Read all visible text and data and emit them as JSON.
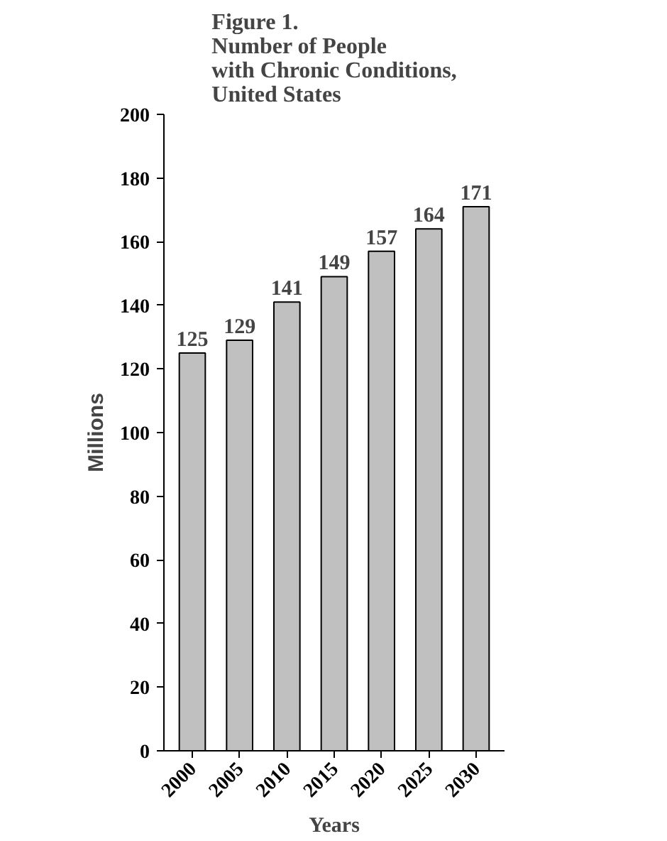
{
  "chart_data": {
    "type": "bar",
    "title": "Figure 1.\nNumber of People\nwith Chronic Conditions,\nUnited States",
    "xlabel": "Years",
    "ylabel": "Millions",
    "categories": [
      "2000",
      "2005",
      "2010",
      "2015",
      "2020",
      "2025",
      "2030"
    ],
    "values": [
      125,
      129,
      141,
      149,
      157,
      164,
      171
    ],
    "color": "#c0c0c0",
    "ylim": [
      0,
      200
    ],
    "yticks": [
      0,
      20,
      40,
      60,
      80,
      100,
      120,
      140,
      160,
      180,
      200
    ],
    "grid": false,
    "data_labels": true
  }
}
